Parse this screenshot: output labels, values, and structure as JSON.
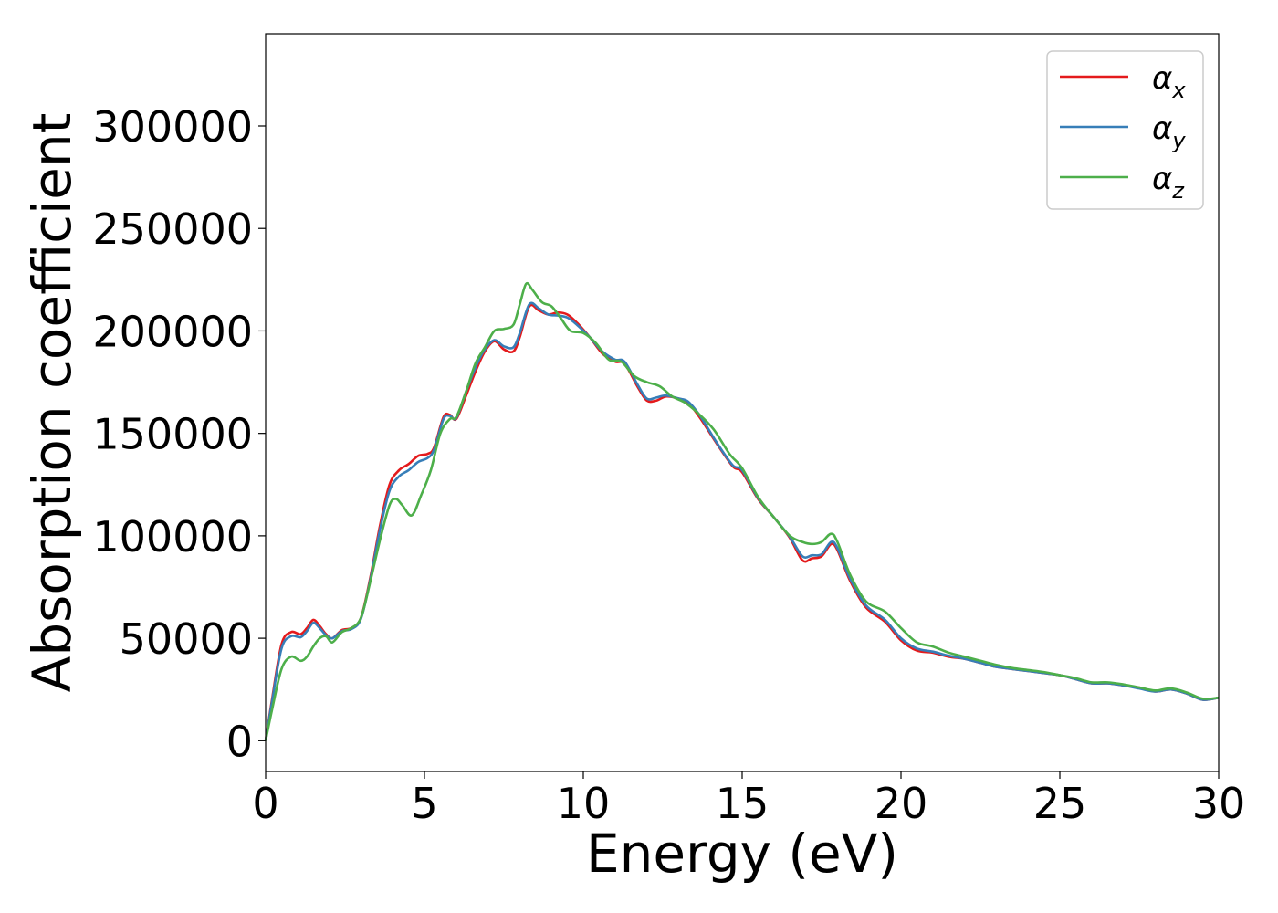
{
  "chart_data": {
    "type": "line",
    "title": "",
    "xlabel": "Energy (eV)",
    "ylabel": "Absorption coefficient",
    "xlim": [
      0,
      30
    ],
    "ylim": [
      -15000,
      345000
    ],
    "xticks": [
      0,
      5,
      10,
      15,
      20,
      25,
      30
    ],
    "yticks": [
      0,
      50000,
      100000,
      150000,
      200000,
      250000,
      300000
    ],
    "grid": false,
    "legend_position": "top-right",
    "series": [
      {
        "name": "α",
        "subscript": "x",
        "color": "#e41a1c",
        "points": [
          [
            0,
            0
          ],
          [
            0.2,
            20000
          ],
          [
            0.5,
            47000
          ],
          [
            0.8,
            53000
          ],
          [
            1.1,
            52000
          ],
          [
            1.3,
            55000
          ],
          [
            1.5,
            59000
          ],
          [
            1.7,
            56000
          ],
          [
            1.9,
            52000
          ],
          [
            2.1,
            50000
          ],
          [
            2.4,
            54000
          ],
          [
            2.7,
            55000
          ],
          [
            3.0,
            60000
          ],
          [
            3.3,
            80000
          ],
          [
            3.6,
            105000
          ],
          [
            3.9,
            125000
          ],
          [
            4.2,
            132000
          ],
          [
            4.5,
            135000
          ],
          [
            4.8,
            139000
          ],
          [
            5.1,
            140000
          ],
          [
            5.3,
            143000
          ],
          [
            5.6,
            158000
          ],
          [
            5.8,
            159000
          ],
          [
            6.0,
            157000
          ],
          [
            6.3,
            168000
          ],
          [
            6.6,
            180000
          ],
          [
            6.9,
            190000
          ],
          [
            7.2,
            195000
          ],
          [
            7.5,
            191000
          ],
          [
            7.8,
            190000
          ],
          [
            8.0,
            197000
          ],
          [
            8.3,
            212000
          ],
          [
            8.6,
            210000
          ],
          [
            8.9,
            208000
          ],
          [
            9.2,
            209000
          ],
          [
            9.5,
            208000
          ],
          [
            9.8,
            204000
          ],
          [
            10.2,
            197000
          ],
          [
            10.6,
            189000
          ],
          [
            11.0,
            185000
          ],
          [
            11.3,
            184000
          ],
          [
            11.7,
            173000
          ],
          [
            12.0,
            166000
          ],
          [
            12.3,
            166000
          ],
          [
            12.6,
            168000
          ],
          [
            13.0,
            167000
          ],
          [
            13.3,
            165000
          ],
          [
            13.7,
            157000
          ],
          [
            14.2,
            145000
          ],
          [
            14.7,
            134000
          ],
          [
            15.0,
            131000
          ],
          [
            15.5,
            118000
          ],
          [
            16.0,
            109000
          ],
          [
            16.5,
            99000
          ],
          [
            16.9,
            88000
          ],
          [
            17.2,
            89000
          ],
          [
            17.5,
            90000
          ],
          [
            17.8,
            96000
          ],
          [
            18.0,
            93000
          ],
          [
            18.4,
            78000
          ],
          [
            18.9,
            65000
          ],
          [
            19.5,
            58000
          ],
          [
            20.0,
            49000
          ],
          [
            20.5,
            44000
          ],
          [
            21.0,
            43000
          ],
          [
            21.5,
            41000
          ],
          [
            22.0,
            40000
          ],
          [
            22.5,
            38000
          ],
          [
            23.0,
            36000
          ],
          [
            23.5,
            35000
          ],
          [
            24.0,
            34000
          ],
          [
            24.5,
            33000
          ],
          [
            25.0,
            32000
          ],
          [
            25.5,
            30000
          ],
          [
            26.0,
            28000
          ],
          [
            26.5,
            28000
          ],
          [
            27.0,
            27000
          ],
          [
            27.5,
            26000
          ],
          [
            28.0,
            24000
          ],
          [
            28.5,
            25000
          ],
          [
            29.0,
            23000
          ],
          [
            29.5,
            20000
          ],
          [
            30.0,
            21000
          ]
        ]
      },
      {
        "name": "α",
        "subscript": "y",
        "color": "#377eb8",
        "points": [
          [
            0,
            0
          ],
          [
            0.2,
            19000
          ],
          [
            0.5,
            45000
          ],
          [
            0.8,
            51000
          ],
          [
            1.1,
            50500
          ],
          [
            1.3,
            53500
          ],
          [
            1.5,
            57500
          ],
          [
            1.7,
            55000
          ],
          [
            1.9,
            51500
          ],
          [
            2.1,
            50000
          ],
          [
            2.4,
            53500
          ],
          [
            2.7,
            54500
          ],
          [
            3.0,
            59500
          ],
          [
            3.3,
            79000
          ],
          [
            3.6,
            103000
          ],
          [
            3.9,
            122000
          ],
          [
            4.2,
            129000
          ],
          [
            4.5,
            132000
          ],
          [
            4.8,
            136000
          ],
          [
            5.1,
            138000
          ],
          [
            5.3,
            142000
          ],
          [
            5.6,
            157000
          ],
          [
            5.8,
            158500
          ],
          [
            6.0,
            157500
          ],
          [
            6.3,
            170000
          ],
          [
            6.6,
            182000
          ],
          [
            6.9,
            191000
          ],
          [
            7.2,
            195500
          ],
          [
            7.5,
            192500
          ],
          [
            7.8,
            192000
          ],
          [
            8.0,
            199000
          ],
          [
            8.3,
            213000
          ],
          [
            8.6,
            211000
          ],
          [
            8.9,
            208000
          ],
          [
            9.2,
            207500
          ],
          [
            9.5,
            206500
          ],
          [
            9.8,
            203000
          ],
          [
            10.2,
            197000
          ],
          [
            10.6,
            190000
          ],
          [
            11.0,
            186000
          ],
          [
            11.3,
            185000
          ],
          [
            11.7,
            174000
          ],
          [
            12.0,
            167000
          ],
          [
            12.3,
            167500
          ],
          [
            12.6,
            168500
          ],
          [
            13.0,
            167000
          ],
          [
            13.3,
            165500
          ],
          [
            13.7,
            158000
          ],
          [
            14.2,
            145500
          ],
          [
            14.7,
            134500
          ],
          [
            15.0,
            132000
          ],
          [
            15.5,
            118500
          ],
          [
            16.0,
            109000
          ],
          [
            16.5,
            99500
          ],
          [
            16.9,
            90000
          ],
          [
            17.2,
            90500
          ],
          [
            17.5,
            91000
          ],
          [
            17.8,
            97000
          ],
          [
            18.0,
            94000
          ],
          [
            18.4,
            79000
          ],
          [
            18.9,
            66000
          ],
          [
            19.5,
            59000
          ],
          [
            20.0,
            50000
          ],
          [
            20.5,
            45000
          ],
          [
            21.0,
            43500
          ],
          [
            21.5,
            41500
          ],
          [
            22.0,
            40000
          ],
          [
            22.5,
            38000
          ],
          [
            23.0,
            36000
          ],
          [
            23.5,
            35000
          ],
          [
            24.0,
            34000
          ],
          [
            24.5,
            33000
          ],
          [
            25.0,
            32000
          ],
          [
            25.5,
            30000
          ],
          [
            26.0,
            28000
          ],
          [
            26.5,
            28000
          ],
          [
            27.0,
            27000
          ],
          [
            27.5,
            25500
          ],
          [
            28.0,
            24000
          ],
          [
            28.5,
            25000
          ],
          [
            29.0,
            23000
          ],
          [
            29.5,
            20000
          ],
          [
            30.0,
            21000
          ]
        ]
      },
      {
        "name": "α",
        "subscript": "z",
        "color": "#4daf4a",
        "points": [
          [
            0,
            0
          ],
          [
            0.2,
            15000
          ],
          [
            0.5,
            35000
          ],
          [
            0.8,
            41000
          ],
          [
            1.1,
            39000
          ],
          [
            1.3,
            41000
          ],
          [
            1.5,
            46000
          ],
          [
            1.7,
            50000
          ],
          [
            1.9,
            51000
          ],
          [
            2.1,
            48000
          ],
          [
            2.4,
            53000
          ],
          [
            2.7,
            55000
          ],
          [
            3.0,
            60000
          ],
          [
            3.3,
            78000
          ],
          [
            3.6,
            98000
          ],
          [
            3.9,
            115000
          ],
          [
            4.1,
            118000
          ],
          [
            4.3,
            115000
          ],
          [
            4.6,
            110000
          ],
          [
            4.9,
            120000
          ],
          [
            5.2,
            132000
          ],
          [
            5.5,
            150000
          ],
          [
            5.8,
            157000
          ],
          [
            6.0,
            158000
          ],
          [
            6.3,
            170000
          ],
          [
            6.6,
            184000
          ],
          [
            6.9,
            192000
          ],
          [
            7.2,
            200000
          ],
          [
            7.5,
            201000
          ],
          [
            7.8,
            203000
          ],
          [
            8.0,
            213000
          ],
          [
            8.2,
            223000
          ],
          [
            8.4,
            220000
          ],
          [
            8.7,
            214000
          ],
          [
            9.0,
            212000
          ],
          [
            9.3,
            206000
          ],
          [
            9.6,
            200000
          ],
          [
            10.0,
            199000
          ],
          [
            10.4,
            194000
          ],
          [
            10.8,
            186000
          ],
          [
            11.2,
            185000
          ],
          [
            11.6,
            178000
          ],
          [
            12.0,
            175000
          ],
          [
            12.4,
            173000
          ],
          [
            12.8,
            168000
          ],
          [
            13.2,
            165000
          ],
          [
            13.6,
            160000
          ],
          [
            14.1,
            152000
          ],
          [
            14.6,
            140000
          ],
          [
            15.0,
            133000
          ],
          [
            15.5,
            119000
          ],
          [
            16.0,
            109000
          ],
          [
            16.5,
            100000
          ],
          [
            16.9,
            97000
          ],
          [
            17.2,
            96000
          ],
          [
            17.5,
            97000
          ],
          [
            17.8,
            101000
          ],
          [
            18.0,
            97000
          ],
          [
            18.4,
            81000
          ],
          [
            18.9,
            68000
          ],
          [
            19.5,
            63000
          ],
          [
            20.0,
            55000
          ],
          [
            20.5,
            48000
          ],
          [
            21.0,
            46000
          ],
          [
            21.5,
            43000
          ],
          [
            22.0,
            41000
          ],
          [
            22.5,
            39000
          ],
          [
            23.0,
            37000
          ],
          [
            23.5,
            35500
          ],
          [
            24.0,
            34500
          ],
          [
            24.5,
            33500
          ],
          [
            25.0,
            32000
          ],
          [
            25.5,
            30500
          ],
          [
            26.0,
            28500
          ],
          [
            26.5,
            28500
          ],
          [
            27.0,
            27500
          ],
          [
            27.5,
            26000
          ],
          [
            28.0,
            24500
          ],
          [
            28.5,
            25500
          ],
          [
            29.0,
            23500
          ],
          [
            29.5,
            20500
          ],
          [
            30.0,
            21000
          ]
        ]
      }
    ]
  }
}
